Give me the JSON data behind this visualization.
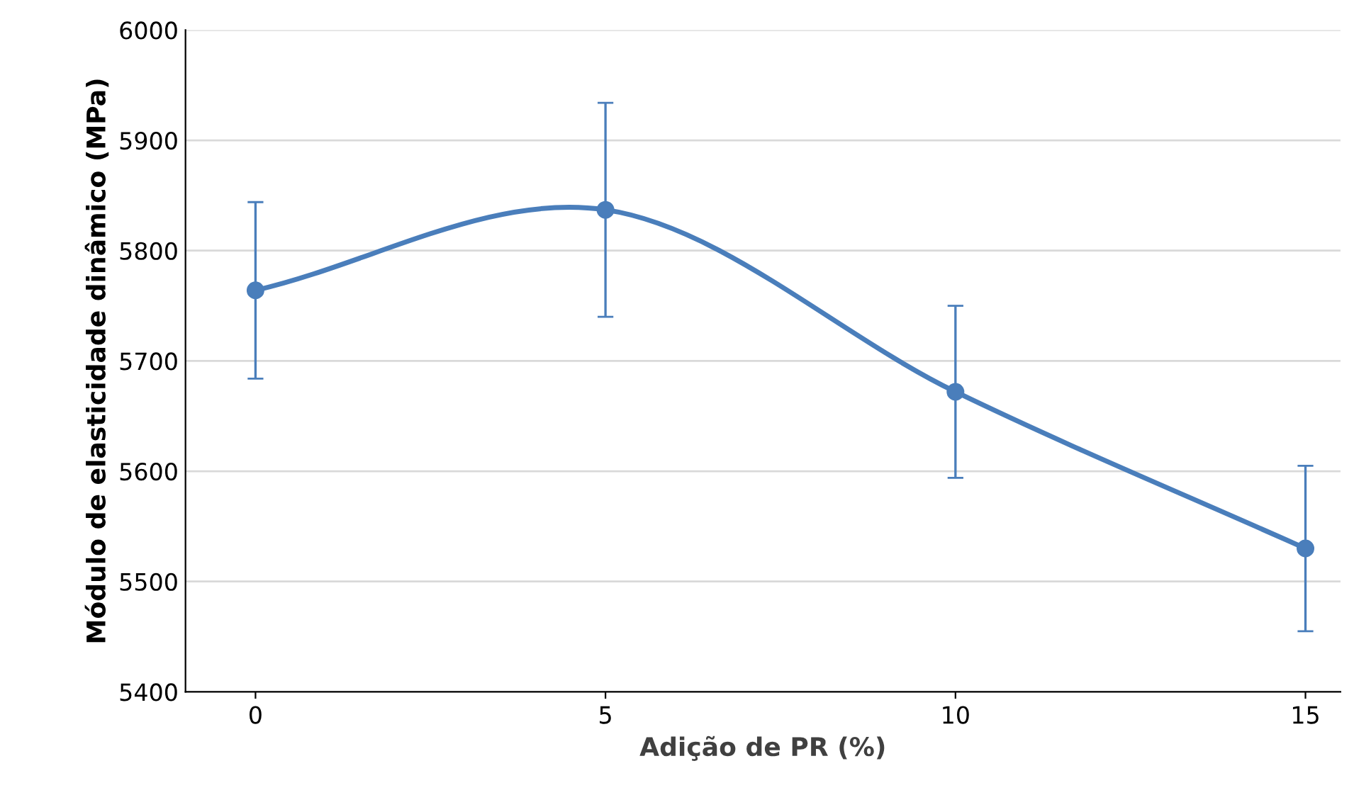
{
  "chart_data": {
    "type": "line",
    "xlabel": "Adição de PR (%)",
    "ylabel": "Módulo de elasticidade dinâmico (MPa)",
    "x": [
      0,
      5,
      10,
      15
    ],
    "series": [
      {
        "color": "#4a7ebb",
        "values": [
          5764,
          5837,
          5672,
          5530
        ],
        "errors": [
          80,
          97,
          78,
          75
        ]
      }
    ],
    "xlim": [
      -1,
      15.5
    ],
    "xticks": [
      0,
      5,
      10,
      15
    ],
    "ylim": [
      5400,
      6000
    ],
    "yticks": [
      5400,
      5500,
      5600,
      5700,
      5800,
      5900,
      6000
    ],
    "grid": "y",
    "marker": "circle",
    "line_style": "solid",
    "legend": false
  }
}
